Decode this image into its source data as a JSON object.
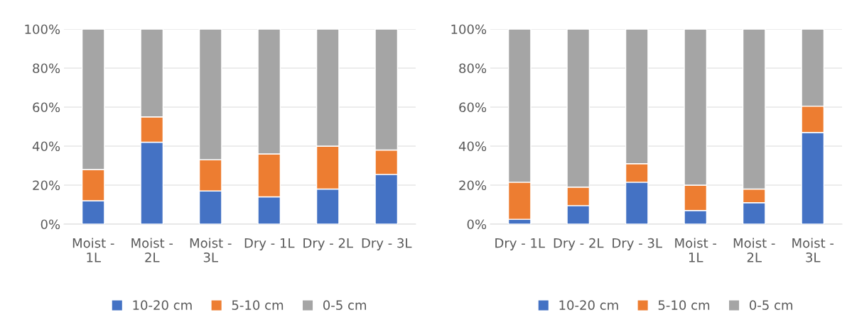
{
  "chart_data": [
    {
      "type": "bar",
      "stacked": true,
      "categories": [
        "Moist - 1L",
        "Moist - 2L",
        "Moist - 3L",
        "Dry - 1L",
        "Dry - 2L",
        "Dry - 3L"
      ],
      "series": [
        {
          "name": "10-20 cm",
          "color": "#4472c4",
          "values": [
            12,
            42,
            17,
            14,
            18,
            25.5
          ]
        },
        {
          "name": "5-10 cm",
          "color": "#ed7d31",
          "values": [
            16,
            13,
            16,
            22,
            22,
            12.5
          ]
        },
        {
          "name": "0-5 cm",
          "color": "#a5a5a5",
          "values": [
            72,
            45,
            67,
            64,
            60,
            62
          ]
        }
      ],
      "ylim": [
        0,
        100
      ],
      "yticks": [
        {
          "value": 0,
          "label": "0%"
        },
        {
          "value": 20,
          "label": "20%"
        },
        {
          "value": 40,
          "label": "40%"
        },
        {
          "value": 60,
          "label": "60%"
        },
        {
          "value": 80,
          "label": "80%"
        },
        {
          "value": 100,
          "label": "100%"
        }
      ],
      "grid": "y",
      "legend": "bottom"
    },
    {
      "type": "bar",
      "stacked": true,
      "categories": [
        "Dry - 1L",
        "Dry - 2L",
        "Dry - 3L",
        "Moist - 1L",
        "Moist - 2L",
        "Moist - 3L"
      ],
      "series": [
        {
          "name": "10-20 cm",
          "color": "#4472c4",
          "values": [
            2.5,
            9.5,
            21.5,
            7,
            11,
            47
          ]
        },
        {
          "name": "5-10 cm",
          "color": "#ed7d31",
          "values": [
            19,
            9.5,
            9.5,
            13,
            7,
            13.5
          ]
        },
        {
          "name": "0-5 cm",
          "color": "#a5a5a5",
          "values": [
            78.5,
            81,
            69,
            80,
            82,
            39.5
          ]
        }
      ],
      "ylim": [
        0,
        100
      ],
      "yticks": [
        {
          "value": 0,
          "label": "0%"
        },
        {
          "value": 20,
          "label": "20%"
        },
        {
          "value": 40,
          "label": "40%"
        },
        {
          "value": 60,
          "label": "60%"
        },
        {
          "value": 80,
          "label": "80%"
        },
        {
          "value": 100,
          "label": "100%"
        }
      ],
      "grid": "y",
      "legend": "bottom"
    }
  ]
}
